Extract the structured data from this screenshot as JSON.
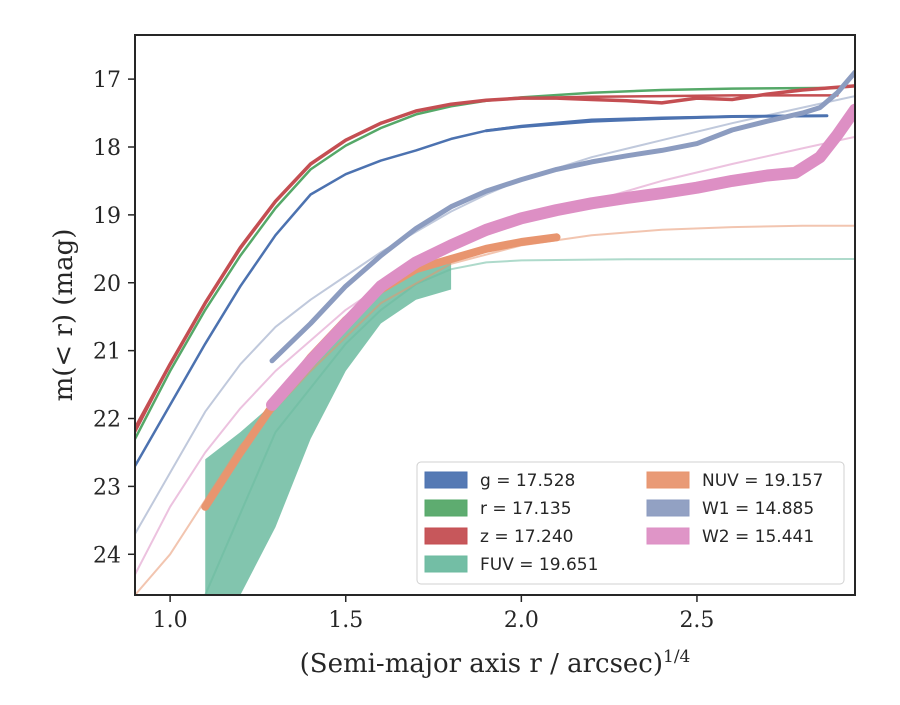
{
  "chart_data": {
    "type": "line",
    "xlabel": "(Semi-major axis r / arcsec)",
    "xlabel_exponent": "1/4",
    "ylabel": "m(< r) (mag)",
    "xlim": [
      0.9,
      2.95
    ],
    "ylim": [
      24.6,
      16.35
    ],
    "y_inverted": true,
    "grid": false,
    "legend_position": "lower-right",
    "x_ticks": [
      {
        "value": 1.0,
        "label": "1.0"
      },
      {
        "value": 1.5,
        "label": "1.5"
      },
      {
        "value": 2.0,
        "label": "2.0"
      },
      {
        "value": 2.5,
        "label": "2.5"
      }
    ],
    "y_ticks": [
      {
        "value": 17,
        "label": "17"
      },
      {
        "value": 18,
        "label": "18"
      },
      {
        "value": 19,
        "label": "19"
      },
      {
        "value": 20,
        "label": "20"
      },
      {
        "value": 21,
        "label": "21"
      },
      {
        "value": 22,
        "label": "22"
      },
      {
        "value": 23,
        "label": "23"
      },
      {
        "value": 24,
        "label": "24"
      }
    ],
    "legend": [
      {
        "band": "g",
        "label": "g = 17.528",
        "color": "#4c72b0"
      },
      {
        "band": "r",
        "label": "r = 17.135",
        "color": "#55a868"
      },
      {
        "band": "z",
        "label": "z = 17.240",
        "color": "#c44e52"
      },
      {
        "band": "FUV",
        "label": "FUV = 19.651",
        "color": "#6cbba0"
      },
      {
        "band": "NUV",
        "label": "NUV = 19.157",
        "color": "#e8956f"
      },
      {
        "band": "W1",
        "label": "W1 = 14.885",
        "color": "#8c9cc0"
      },
      {
        "band": "W2",
        "label": "W2 = 15.441",
        "color": "#dd8fc4"
      }
    ],
    "series": [
      {
        "name": "g model",
        "kind": "model",
        "color": "#4c72b0",
        "x": [
          0.9,
          1.0,
          1.1,
          1.2,
          1.3,
          1.4,
          1.5,
          1.6,
          1.7,
          1.8,
          1.9,
          2.0,
          2.2,
          2.4,
          2.6,
          2.87
        ],
        "y": [
          22.7,
          21.8,
          20.9,
          20.05,
          19.3,
          18.7,
          18.4,
          18.2,
          18.05,
          17.88,
          17.76,
          17.69,
          17.6,
          17.57,
          17.55,
          17.54
        ]
      },
      {
        "name": "g",
        "kind": "data",
        "color": "#4c72b0",
        "width": 3,
        "x": [
          1.9,
          2.0,
          2.2,
          2.4,
          2.6,
          2.87
        ],
        "y": [
          17.76,
          17.7,
          17.62,
          17.58,
          17.55,
          17.54
        ]
      },
      {
        "name": "r model",
        "kind": "model",
        "color": "#55a868",
        "x": [
          0.9,
          1.0,
          1.1,
          1.2,
          1.3,
          1.4,
          1.5,
          1.6,
          1.7,
          1.8,
          1.9,
          2.0,
          2.2,
          2.4,
          2.6,
          2.9
        ],
        "y": [
          22.3,
          21.3,
          20.4,
          19.6,
          18.9,
          18.33,
          17.98,
          17.72,
          17.52,
          17.4,
          17.32,
          17.27,
          17.2,
          17.16,
          17.14,
          17.13
        ]
      },
      {
        "name": "z model",
        "kind": "model",
        "color": "#c44e52",
        "x": [
          0.9,
          1.0,
          1.1,
          1.2,
          1.3,
          1.4,
          1.5,
          1.6,
          1.7,
          1.8,
          1.9,
          2.0,
          2.2,
          2.4,
          2.6,
          2.9
        ],
        "y": [
          22.2,
          21.2,
          20.3,
          19.5,
          18.8,
          18.25,
          17.9,
          17.65,
          17.47,
          17.37,
          17.31,
          17.28,
          17.26,
          17.25,
          17.24,
          17.24
        ]
      },
      {
        "name": "z",
        "kind": "data",
        "color": "#c44e52",
        "width": 3.5,
        "x": [
          0.9,
          1.0,
          1.1,
          1.2,
          1.3,
          1.4,
          1.5,
          1.6,
          1.7,
          1.8,
          1.9,
          2.0,
          2.1,
          2.2,
          2.3,
          2.4,
          2.5,
          2.6,
          2.7,
          2.8,
          2.95
        ],
        "y": [
          22.15,
          21.2,
          20.3,
          19.48,
          18.8,
          18.25,
          17.9,
          17.65,
          17.47,
          17.37,
          17.31,
          17.28,
          17.28,
          17.3,
          17.32,
          17.35,
          17.28,
          17.3,
          17.22,
          17.16,
          17.1
        ]
      },
      {
        "name": "FUV model",
        "kind": "model",
        "color": "#6cbba0",
        "x": [
          1.1,
          1.3,
          1.5,
          1.6,
          1.7,
          1.8,
          1.9,
          2.0,
          2.3,
          2.95
        ],
        "y": [
          24.6,
          22.2,
          20.9,
          20.4,
          20.02,
          19.8,
          19.7,
          19.67,
          19.655,
          19.65
        ]
      },
      {
        "name": "NUV model",
        "kind": "model",
        "color": "#e8956f",
        "x": [
          0.9,
          1.0,
          1.2,
          1.4,
          1.6,
          1.8,
          2.0,
          2.2,
          2.4,
          2.6,
          2.8,
          2.95
        ],
        "y": [
          24.6,
          24.0,
          22.4,
          21.3,
          20.3,
          19.72,
          19.45,
          19.3,
          19.22,
          19.18,
          19.16,
          19.16
        ]
      },
      {
        "name": "NUV",
        "kind": "data",
        "color": "#e8956f",
        "width": 8,
        "x": [
          1.1,
          1.2,
          1.3,
          1.4,
          1.5,
          1.6,
          1.7,
          1.8,
          1.9,
          2.0,
          2.1
        ],
        "y": [
          23.3,
          22.5,
          21.75,
          21.1,
          20.55,
          20.1,
          19.8,
          19.65,
          19.5,
          19.4,
          19.33
        ]
      },
      {
        "name": "W1 model",
        "kind": "model",
        "color": "#8c9cc0",
        "x": [
          0.9,
          1.0,
          1.1,
          1.2,
          1.3,
          1.4,
          1.5,
          1.6,
          1.7,
          1.8,
          1.9,
          2.0,
          2.2,
          2.4,
          2.6,
          2.8,
          2.95
        ],
        "y": [
          23.7,
          22.8,
          21.9,
          21.2,
          20.65,
          20.25,
          19.9,
          19.55,
          19.25,
          18.95,
          18.7,
          18.48,
          18.15,
          17.9,
          17.65,
          17.42,
          17.25
        ]
      },
      {
        "name": "W1",
        "kind": "data",
        "color": "#8c9cc0",
        "width": 5,
        "x": [
          1.29,
          1.4,
          1.5,
          1.6,
          1.7,
          1.8,
          1.9,
          2.0,
          2.1,
          2.2,
          2.3,
          2.4,
          2.5,
          2.6,
          2.7,
          2.8,
          2.85,
          2.9,
          2.95
        ],
        "y": [
          21.15,
          20.6,
          20.05,
          19.6,
          19.2,
          18.88,
          18.65,
          18.48,
          18.33,
          18.22,
          18.13,
          18.05,
          17.95,
          17.75,
          17.62,
          17.5,
          17.42,
          17.2,
          16.9
        ]
      },
      {
        "name": "W2 model",
        "kind": "model",
        "color": "#dd8fc4",
        "x": [
          0.9,
          1.0,
          1.1,
          1.2,
          1.3,
          1.4,
          1.5,
          1.6,
          1.7,
          1.8,
          1.9,
          2.0,
          2.2,
          2.4,
          2.6,
          2.8,
          2.95
        ],
        "y": [
          24.3,
          23.3,
          22.5,
          21.85,
          21.3,
          20.85,
          20.4,
          20.05,
          19.75,
          19.5,
          19.3,
          19.12,
          18.8,
          18.5,
          18.25,
          18.02,
          17.85
        ]
      },
      {
        "name": "W2",
        "kind": "data",
        "color": "#dd8fc4",
        "width": 12,
        "x": [
          1.29,
          1.4,
          1.5,
          1.6,
          1.7,
          1.8,
          1.9,
          2.0,
          2.1,
          2.2,
          2.3,
          2.4,
          2.5,
          2.6,
          2.7,
          2.78,
          2.85,
          2.9,
          2.95
        ],
        "y": [
          21.8,
          21.15,
          20.6,
          20.05,
          19.7,
          19.45,
          19.22,
          19.05,
          18.93,
          18.83,
          18.75,
          18.68,
          18.6,
          18.5,
          18.42,
          18.38,
          18.15,
          17.82,
          17.45
        ]
      }
    ],
    "bands": [
      {
        "name": "FUV",
        "color": "#6cbba0",
        "x": [
          1.1,
          1.2,
          1.3,
          1.4,
          1.5,
          1.6,
          1.7,
          1.8
        ],
        "y_upper": [
          22.6,
          22.2,
          21.75,
          21.2,
          20.6,
          20.1,
          19.8,
          19.6
        ],
        "y_lower": [
          24.6,
          24.6,
          23.6,
          22.3,
          21.3,
          20.6,
          20.25,
          20.1
        ]
      }
    ]
  }
}
